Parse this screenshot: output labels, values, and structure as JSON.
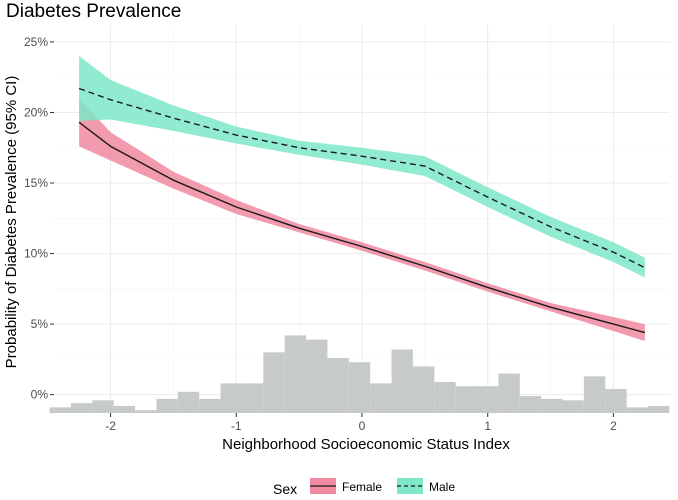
{
  "chart_data": {
    "type": "line",
    "title": "Diabetes Prevalence",
    "xlabel": "Neighborhood Socioeconomic Status Index",
    "ylabel": "Probability of Diabetes Prevalence (95% CI)",
    "xlim": [
      -2.45,
      2.45
    ],
    "ylim": [
      -1.3,
      26.2
    ],
    "x_ticks": [
      -2,
      -1,
      0,
      1,
      2
    ],
    "x_tick_labels": [
      "-2",
      "-1",
      "0",
      "1",
      "2"
    ],
    "y_ticks": [
      0,
      5,
      10,
      15,
      20,
      25
    ],
    "y_tick_labels": [
      "0%",
      "5%",
      "10%",
      "15%",
      "20%",
      "25%"
    ],
    "grid": true,
    "legend": {
      "title": "Sex",
      "position": "bottom",
      "entries": [
        "Female",
        "Male"
      ]
    },
    "series": [
      {
        "name": "Female",
        "line_style": "solid",
        "line_color": "#1a1a1a",
        "band_color": "#f08aa0",
        "x": [
          -2.25,
          -2.0,
          -1.5,
          -1.0,
          -0.5,
          0.0,
          0.5,
          1.0,
          1.5,
          2.0,
          2.25
        ],
        "y": [
          19.3,
          17.6,
          15.2,
          13.3,
          11.8,
          10.5,
          9.1,
          7.6,
          6.2,
          5.0,
          4.4
        ],
        "lower": [
          17.6,
          16.6,
          14.6,
          12.8,
          11.5,
          10.2,
          8.8,
          7.3,
          5.9,
          4.5,
          3.8
        ],
        "upper": [
          21.0,
          18.6,
          15.8,
          13.8,
          12.1,
          10.8,
          9.4,
          7.9,
          6.5,
          5.5,
          5.0
        ]
      },
      {
        "name": "Male",
        "line_style": "dashed",
        "line_color": "#1a1a1a",
        "band_color": "#7ee8c8",
        "x": [
          -2.25,
          -2.0,
          -1.5,
          -1.0,
          -0.5,
          0.0,
          0.5,
          1.0,
          1.5,
          2.0,
          2.25
        ],
        "y": [
          21.7,
          20.9,
          19.6,
          18.4,
          17.5,
          16.9,
          16.2,
          14.0,
          11.9,
          10.1,
          9.0
        ],
        "lower": [
          19.4,
          19.5,
          18.7,
          17.8,
          17.0,
          16.3,
          15.5,
          13.3,
          11.2,
          9.4,
          8.3
        ],
        "upper": [
          24.0,
          22.3,
          20.5,
          19.0,
          18.0,
          17.5,
          16.9,
          14.7,
          12.6,
          10.8,
          9.7
        ]
      }
    ],
    "histogram": {
      "color": "#c7cbc8",
      "bin_width": 0.17,
      "bins": [
        {
          "x": -2.4,
          "h": -0.9
        },
        {
          "x": -2.23,
          "h": -0.6
        },
        {
          "x": -2.06,
          "h": -0.4
        },
        {
          "x": -1.89,
          "h": -0.8
        },
        {
          "x": -1.72,
          "h": -1.1
        },
        {
          "x": -1.55,
          "h": -0.3
        },
        {
          "x": -1.38,
          "h": 0.2
        },
        {
          "x": -1.21,
          "h": -0.3
        },
        {
          "x": -1.04,
          "h": 0.8
        },
        {
          "x": -0.87,
          "h": 0.8
        },
        {
          "x": -0.7,
          "h": 3.0
        },
        {
          "x": -0.53,
          "h": 4.2
        },
        {
          "x": -0.36,
          "h": 3.9
        },
        {
          "x": -0.19,
          "h": 2.6
        },
        {
          "x": -0.02,
          "h": 2.3
        },
        {
          "x": 0.15,
          "h": 0.8
        },
        {
          "x": 0.32,
          "h": 3.2
        },
        {
          "x": 0.49,
          "h": 2.0
        },
        {
          "x": 0.66,
          "h": 0.9
        },
        {
          "x": 0.83,
          "h": 0.6
        },
        {
          "x": 1.0,
          "h": 0.6
        },
        {
          "x": 1.17,
          "h": 1.5
        },
        {
          "x": 1.34,
          "h": -0.1
        },
        {
          "x": 1.51,
          "h": -0.3
        },
        {
          "x": 1.68,
          "h": -0.4
        },
        {
          "x": 1.85,
          "h": 1.3
        },
        {
          "x": 2.02,
          "h": 0.4
        },
        {
          "x": 2.19,
          "h": -0.9
        },
        {
          "x": 2.36,
          "h": -0.8
        }
      ]
    }
  }
}
